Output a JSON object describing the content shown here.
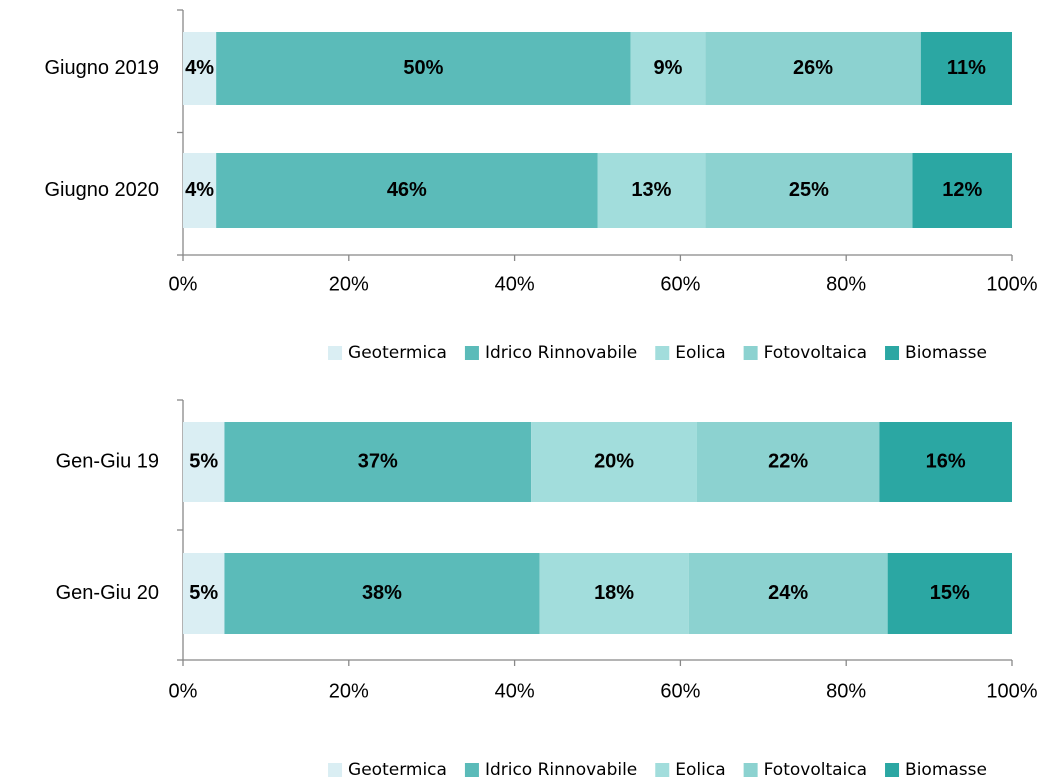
{
  "chart_data": [
    {
      "type": "bar",
      "orientation": "horizontal",
      "stacked": true,
      "categories": [
        "Giugno 2019",
        "Giugno 2020"
      ],
      "series": [
        {
          "name": "Geotermica",
          "color": "#daeef3",
          "values": [
            4,
            4
          ],
          "value_labels": [
            "4%",
            "4%"
          ]
        },
        {
          "name": "Idrico Rinnovabile",
          "color": "#5bbbb9",
          "values": [
            50,
            46
          ],
          "value_labels": [
            "50%",
            "46%"
          ]
        },
        {
          "name": "Eolica",
          "color": "#a2dddc",
          "values": [
            9,
            13
          ],
          "value_labels": [
            "9%",
            "13%"
          ]
        },
        {
          "name": "Fotovoltaica",
          "color": "#8cd2d0",
          "values": [
            26,
            25
          ],
          "value_labels": [
            "26%",
            "25%"
          ]
        },
        {
          "name": "Biomasse",
          "color": "#2ba7a3",
          "values": [
            11,
            12
          ],
          "value_labels": [
            "11%",
            "12%"
          ]
        }
      ],
      "xlim": [
        0,
        100
      ],
      "xticks": [
        {
          "value": 0,
          "label": "0%"
        },
        {
          "value": 20,
          "label": "20%"
        },
        {
          "value": 40,
          "label": "40%"
        },
        {
          "value": 60,
          "label": "60%"
        },
        {
          "value": 80,
          "label": "80%"
        },
        {
          "value": 100,
          "label": "100%"
        }
      ],
      "legend": "bottom"
    },
    {
      "type": "bar",
      "orientation": "horizontal",
      "stacked": true,
      "categories": [
        "Gen-Giu 19",
        "Gen-Giu 20"
      ],
      "series": [
        {
          "name": "Geotermica",
          "color": "#daeef3",
          "values": [
            5,
            5
          ],
          "value_labels": [
            "5%",
            "5%"
          ]
        },
        {
          "name": "Idrico Rinnovabile",
          "color": "#5bbbb9",
          "values": [
            37,
            38
          ],
          "value_labels": [
            "37%",
            "38%"
          ]
        },
        {
          "name": "Eolica",
          "color": "#a2dddc",
          "values": [
            20,
            18
          ],
          "value_labels": [
            "20%",
            "18%"
          ]
        },
        {
          "name": "Fotovoltaica",
          "color": "#8cd2d0",
          "values": [
            22,
            24
          ],
          "value_labels": [
            "22%",
            "24%"
          ]
        },
        {
          "name": "Biomasse",
          "color": "#2ba7a3",
          "values": [
            16,
            15
          ],
          "value_labels": [
            "16%",
            "15%"
          ]
        }
      ],
      "xlim": [
        0,
        100
      ],
      "xticks": [
        {
          "value": 0,
          "label": "0%"
        },
        {
          "value": 20,
          "label": "20%"
        },
        {
          "value": 40,
          "label": "40%"
        },
        {
          "value": 60,
          "label": "60%"
        },
        {
          "value": 80,
          "label": "80%"
        },
        {
          "value": 100,
          "label": "100%"
        }
      ],
      "legend": "bottom"
    }
  ]
}
